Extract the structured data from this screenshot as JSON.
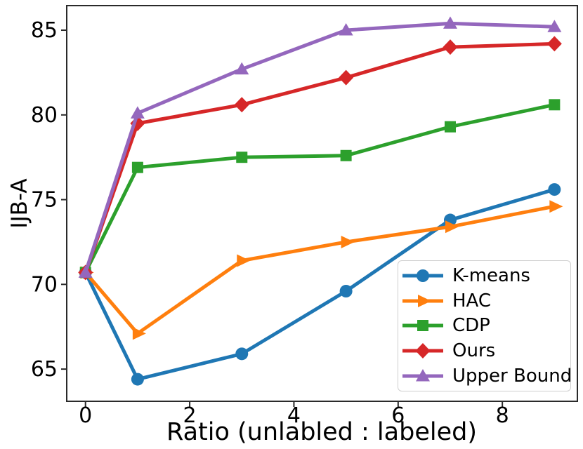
{
  "chart_data": {
    "type": "line",
    "title": "",
    "xlabel": "Ratio (unlabled : labeled)",
    "ylabel": "IJB-A",
    "x": [
      0,
      1,
      3,
      5,
      7,
      9
    ],
    "series": [
      {
        "name": "K-means",
        "color": "#1f77b4",
        "marker": "circle",
        "values": [
          70.7,
          64.4,
          65.9,
          69.6,
          73.8,
          75.6
        ]
      },
      {
        "name": "HAC",
        "color": "#ff7f0e",
        "marker": "triangle-right",
        "values": [
          70.7,
          67.1,
          71.4,
          72.5,
          73.4,
          74.6
        ]
      },
      {
        "name": "CDP",
        "color": "#2ca02c",
        "marker": "square",
        "values": [
          70.7,
          76.9,
          77.5,
          77.6,
          79.3,
          80.6
        ]
      },
      {
        "name": "Ours",
        "color": "#d62728",
        "marker": "diamond",
        "values": [
          70.7,
          79.5,
          80.6,
          82.2,
          84.0,
          84.2
        ]
      },
      {
        "name": "Upper Bound",
        "color": "#9467bd",
        "marker": "triangle-up",
        "values": [
          70.7,
          80.1,
          82.7,
          85.0,
          85.4,
          85.2
        ]
      }
    ],
    "xticks": [
      0,
      2,
      4,
      6,
      8
    ],
    "yticks": [
      65,
      70,
      75,
      80,
      85
    ],
    "xlim": [
      -0.36,
      9.44
    ],
    "ylim": [
      63.1,
      86.45
    ],
    "grid": false,
    "legend_position": "lower right",
    "spine_color": "#2a2a2a",
    "tick_label_color": "#000000",
    "line_width": 5
  }
}
